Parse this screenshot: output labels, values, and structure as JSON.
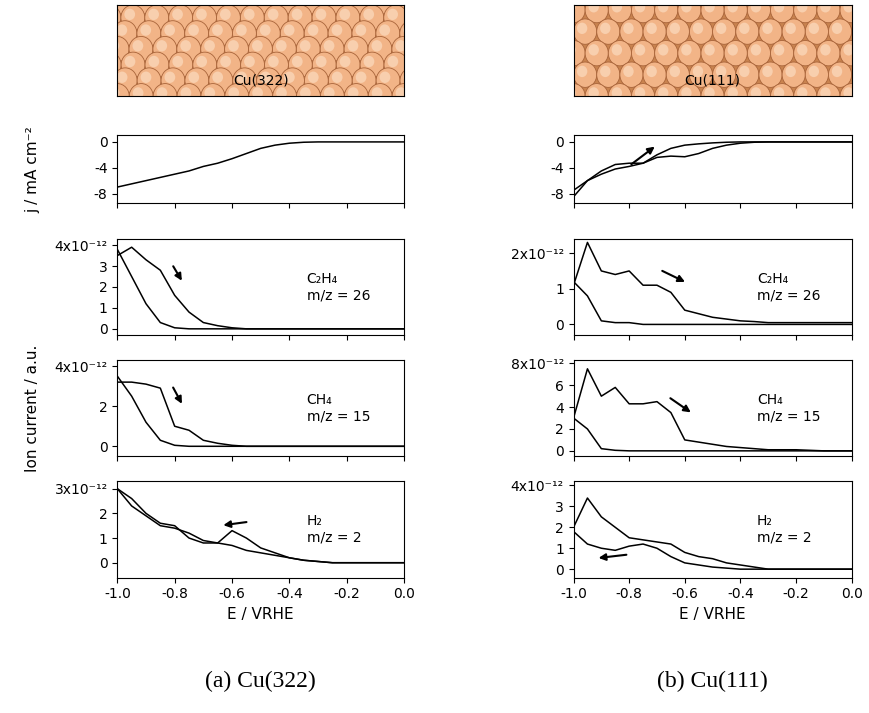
{
  "captions": [
    "(a) Cu(322)",
    "(b) Cu(111)"
  ],
  "surfaces": [
    "Cu(322)",
    "Cu(111)"
  ],
  "chart_data": [
    {
      "type": "line",
      "ylabel": "j / mA cm⁻²",
      "tick_labels": "y",
      "x": [
        -1.0,
        -0.95,
        -0.9,
        -0.85,
        -0.8,
        -0.75,
        -0.7,
        -0.65,
        -0.6,
        -0.55,
        -0.5,
        -0.45,
        -0.4,
        -0.35,
        -0.3,
        -0.25,
        -0.2,
        -0.15,
        -0.1,
        -0.05,
        0.0
      ],
      "series": [
        {
          "color": "#000000",
          "values": [
            -7.0,
            -6.5,
            -6.0,
            -5.5,
            -5.0,
            -4.5,
            -3.8,
            -3.3,
            -2.6,
            -1.8,
            -1.0,
            -0.5,
            -0.2,
            -0.05,
            0,
            0,
            0,
            0,
            0,
            0,
            0
          ]
        }
      ],
      "xlim": [
        -1.0,
        0.0
      ],
      "xticks": [
        -1.0,
        -0.8,
        -0.6,
        -0.4,
        -0.2,
        0.0
      ],
      "ylim": [
        -9.5,
        1.0
      ],
      "yticks": [
        -8,
        -4,
        0
      ]
    },
    {
      "type": "line",
      "annotation": "C₂H₄\nm/z = 26",
      "tick_labels": "y",
      "x": [
        -1.0,
        -0.95,
        -0.9,
        -0.85,
        -0.8,
        -0.75,
        -0.7,
        -0.65,
        -0.6,
        -0.55,
        -0.5,
        -0.45,
        -0.4,
        -0.35,
        -0.3,
        -0.25,
        -0.2,
        -0.15,
        -0.1,
        -0.05,
        0.0
      ],
      "series": [
        {
          "color": "#000000",
          "values": [
            3.5e-12,
            3.9e-12,
            3.3e-12,
            2.8e-12,
            1.6e-12,
            8e-13,
            3e-13,
            1.5e-13,
            5e-14,
            0,
            0,
            0,
            0,
            0,
            0,
            0,
            0,
            0,
            0,
            0,
            0
          ]
        },
        {
          "color": "#000000",
          "values": [
            3.8e-12,
            2.5e-12,
            1.2e-12,
            3e-13,
            5e-14,
            0,
            0,
            0,
            0,
            0,
            0,
            0,
            0,
            0,
            0,
            0,
            0,
            0,
            0,
            0,
            0
          ]
        }
      ],
      "xlim": [
        -1.0,
        0.0
      ],
      "xticks": [
        -1.0,
        -0.8,
        -0.6,
        -0.4,
        -0.2,
        0.0
      ],
      "ylim": [
        -3e-13,
        4.3e-12
      ],
      "yticks": [
        0,
        {
          "value": 1e-12,
          "label": "1"
        },
        {
          "value": 2e-12,
          "label": "2"
        },
        {
          "value": 3e-12,
          "label": "3"
        },
        {
          "value": 4e-12,
          "label": "4x10⁻¹²"
        }
      ]
    },
    {
      "type": "line",
      "annotation": "CH₄\nm/z = 15",
      "ylabel": "Ion current / a.u.",
      "tick_labels": "y",
      "x": [
        -1.0,
        -0.95,
        -0.9,
        -0.85,
        -0.8,
        -0.75,
        -0.7,
        -0.65,
        -0.6,
        -0.55,
        -0.5,
        -0.45,
        -0.4,
        -0.35,
        -0.3,
        -0.25,
        -0.2,
        -0.15,
        -0.1,
        -0.05,
        0.0
      ],
      "series": [
        {
          "color": "#000000",
          "values": [
            3.2e-12,
            3.2e-12,
            3.1e-12,
            2.9e-12,
            1e-12,
            8e-13,
            3e-13,
            1.5e-13,
            5e-14,
            0,
            0,
            0,
            0,
            0,
            0,
            0,
            0,
            0,
            0,
            0,
            0
          ]
        },
        {
          "color": "#000000",
          "values": [
            3.5e-12,
            2.5e-12,
            1.2e-12,
            3e-13,
            5e-14,
            0,
            0,
            0,
            0,
            0,
            0,
            0,
            0,
            0,
            0,
            0,
            0,
            0,
            0,
            0,
            0
          ]
        }
      ],
      "xlim": [
        -1.0,
        0.0
      ],
      "xticks": [
        -1.0,
        -0.8,
        -0.6,
        -0.4,
        -0.2,
        0.0
      ],
      "ylim": [
        -5e-13,
        4.3e-12
      ],
      "yticks": [
        0,
        {
          "value": 2e-12,
          "label": "2"
        },
        {
          "value": 4e-12,
          "label": "4x10⁻¹²"
        }
      ]
    },
    {
      "type": "line",
      "annotation": "H₂\nm/z = 2",
      "xlabel": "E / VRHE",
      "x": [
        -1.0,
        -0.95,
        -0.9,
        -0.85,
        -0.8,
        -0.75,
        -0.7,
        -0.65,
        -0.6,
        -0.55,
        -0.5,
        -0.45,
        -0.4,
        -0.35,
        -0.3,
        -0.25,
        -0.2,
        -0.15,
        -0.1,
        -0.05,
        0.0
      ],
      "series": [
        {
          "color": "#000000",
          "values": [
            3e-12,
            2.6e-12,
            2e-12,
            1.6e-12,
            1.5e-12,
            1e-12,
            8e-13,
            8e-13,
            1.3e-12,
            1e-12,
            6e-13,
            4e-13,
            2e-13,
            1e-13,
            5e-14,
            0,
            0,
            0,
            0,
            0,
            0
          ]
        },
        {
          "color": "#000000",
          "values": [
            3e-12,
            2.3e-12,
            1.9e-12,
            1.5e-12,
            1.4e-12,
            1.2e-12,
            9e-13,
            8e-13,
            7e-13,
            5e-13,
            4e-13,
            3e-13,
            2e-13,
            1e-13,
            5e-14,
            0,
            0,
            0,
            0,
            0,
            0
          ]
        }
      ],
      "xlim": [
        -1.0,
        0.0
      ],
      "xticks": [
        -1.0,
        -0.8,
        -0.6,
        -0.4,
        -0.2,
        0.0
      ],
      "ylim": [
        -6e-13,
        3.3e-12
      ],
      "yticks": [
        0,
        {
          "value": 1e-12,
          "label": "1"
        },
        {
          "value": 2e-12,
          "label": "2"
        },
        {
          "value": 3e-12,
          "label": "3x10⁻¹²"
        }
      ]
    },
    {
      "type": "line",
      "tick_labels": "y",
      "x": [
        -1.0,
        -0.95,
        -0.9,
        -0.85,
        -0.8,
        -0.75,
        -0.7,
        -0.65,
        -0.6,
        -0.55,
        -0.5,
        -0.45,
        -0.4,
        -0.35,
        -0.3,
        -0.25,
        -0.2,
        -0.15,
        -0.1,
        -0.05,
        0.0
      ],
      "series": [
        {
          "color": "#000000",
          "values": [
            -7.5,
            -6.0,
            -5.0,
            -4.2,
            -3.8,
            -3.3,
            -2.4,
            -2.2,
            -2.3,
            -1.8,
            -1.0,
            -0.5,
            -0.2,
            -0.05,
            0,
            0,
            0,
            0,
            0,
            0,
            0
          ]
        },
        {
          "color": "#000000",
          "values": [
            -8.5,
            -6.0,
            -4.5,
            -3.5,
            -3.3,
            -3.3,
            -2.0,
            -1.0,
            -0.5,
            -0.3,
            -0.15,
            -0.05,
            0,
            0,
            0,
            0,
            0,
            0,
            0,
            0,
            0
          ]
        }
      ],
      "xlim": [
        -1.0,
        0.0
      ],
      "xticks": [
        -1.0,
        -0.8,
        -0.6,
        -0.4,
        -0.2,
        0.0
      ],
      "ylim": [
        -9.5,
        1.0
      ],
      "yticks": [
        -8,
        -4,
        0
      ]
    },
    {
      "type": "line",
      "annotation": "C₂H₄\nm/z = 26",
      "tick_labels": "y",
      "x": [
        -1.0,
        -0.95,
        -0.9,
        -0.85,
        -0.8,
        -0.75,
        -0.7,
        -0.65,
        -0.6,
        -0.55,
        -0.5,
        -0.45,
        -0.4,
        -0.35,
        -0.3,
        -0.25,
        -0.2,
        -0.15,
        -0.1,
        -0.05,
        0.0
      ],
      "series": [
        {
          "color": "#000000",
          "values": [
            1.1e-12,
            2.3e-12,
            1.5e-12,
            1.4e-12,
            1.5e-12,
            1.1e-12,
            1.1e-12,
            9e-13,
            4e-13,
            3e-13,
            2e-13,
            1.5e-13,
            1e-13,
            8e-14,
            5e-14,
            5e-14,
            5e-14,
            5e-14,
            5e-14,
            5e-14,
            5e-14
          ]
        },
        {
          "color": "#000000",
          "values": [
            1.2e-12,
            8e-13,
            1e-13,
            5e-14,
            5e-14,
            0,
            0,
            0,
            0,
            0,
            0,
            0,
            0,
            0,
            0,
            0,
            0,
            0,
            0,
            0,
            0
          ]
        }
      ],
      "xlim": [
        -1.0,
        0.0
      ],
      "xticks": [
        -1.0,
        -0.8,
        -0.6,
        -0.4,
        -0.2,
        0.0
      ],
      "ylim": [
        -3e-13,
        2.4e-12
      ],
      "yticks": [
        0,
        {
          "value": 1e-12,
          "label": "1"
        },
        {
          "value": 2e-12,
          "label": "2x10⁻¹²"
        }
      ]
    },
    {
      "type": "line",
      "annotation": "CH₄\nm/z = 15",
      "tick_labels": "y",
      "x": [
        -1.0,
        -0.95,
        -0.9,
        -0.85,
        -0.8,
        -0.75,
        -0.7,
        -0.65,
        -0.6,
        -0.55,
        -0.5,
        -0.45,
        -0.4,
        -0.35,
        -0.3,
        -0.25,
        -0.2,
        -0.15,
        -0.1,
        -0.05,
        0.0
      ],
      "series": [
        {
          "color": "#000000",
          "values": [
            3e-12,
            7.5e-12,
            5e-12,
            5.8e-12,
            4.3e-12,
            4.3e-12,
            4.5e-12,
            3.5e-12,
            1e-12,
            8e-13,
            6e-13,
            4e-13,
            3e-13,
            2e-13,
            1e-13,
            1e-13,
            1e-13,
            5e-14,
            0,
            0,
            0
          ]
        },
        {
          "color": "#000000",
          "values": [
            3e-12,
            2e-12,
            2e-13,
            5e-14,
            0,
            0,
            0,
            0,
            0,
            0,
            0,
            0,
            0,
            0,
            0,
            0,
            0,
            0,
            0,
            0,
            0
          ]
        }
      ],
      "xlim": [
        -1.0,
        0.0
      ],
      "xticks": [
        -1.0,
        -0.8,
        -0.6,
        -0.4,
        -0.2,
        0.0
      ],
      "ylim": [
        -5e-13,
        8.3e-12
      ],
      "yticks": [
        0,
        {
          "value": 2e-12,
          "label": "2"
        },
        {
          "value": 4e-12,
          "label": "4"
        },
        {
          "value": 6e-12,
          "label": "6"
        },
        {
          "value": 8e-12,
          "label": "8x10⁻¹²"
        }
      ]
    },
    {
      "type": "line",
      "annotation": "H₂\nm/z = 2",
      "xlabel": "E / VRHE",
      "x": [
        -1.0,
        -0.95,
        -0.9,
        -0.85,
        -0.8,
        -0.75,
        -0.7,
        -0.65,
        -0.6,
        -0.55,
        -0.5,
        -0.45,
        -0.4,
        -0.35,
        -0.3,
        -0.25,
        -0.2,
        -0.15,
        -0.1,
        -0.05,
        0.0
      ],
      "series": [
        {
          "color": "#000000",
          "values": [
            2e-12,
            3.4e-12,
            2.5e-12,
            2e-12,
            1.5e-12,
            1.4e-12,
            1.3e-12,
            1.2e-12,
            8e-13,
            6e-13,
            5e-13,
            3e-13,
            2e-13,
            1e-13,
            0,
            0,
            0,
            0,
            0,
            0,
            0
          ]
        },
        {
          "color": "#000000",
          "values": [
            1.8e-12,
            1.2e-12,
            1e-12,
            9e-13,
            1.1e-12,
            1.2e-12,
            1e-12,
            6e-13,
            3e-13,
            2e-13,
            1e-13,
            5e-14,
            0,
            0,
            0,
            0,
            0,
            0,
            0,
            0,
            0
          ]
        }
      ],
      "xlim": [
        -1.0,
        0.0
      ],
      "xticks": [
        -1.0,
        -0.8,
        -0.6,
        -0.4,
        -0.2,
        0.0
      ],
      "ylim": [
        -4e-13,
        4.2e-12
      ],
      "yticks": [
        0,
        {
          "value": 1e-12,
          "label": "1"
        },
        {
          "value": 2e-12,
          "label": "2"
        },
        {
          "value": 3e-12,
          "label": "3"
        },
        {
          "value": 4e-12,
          "label": "4x10⁻¹²"
        }
      ]
    }
  ]
}
